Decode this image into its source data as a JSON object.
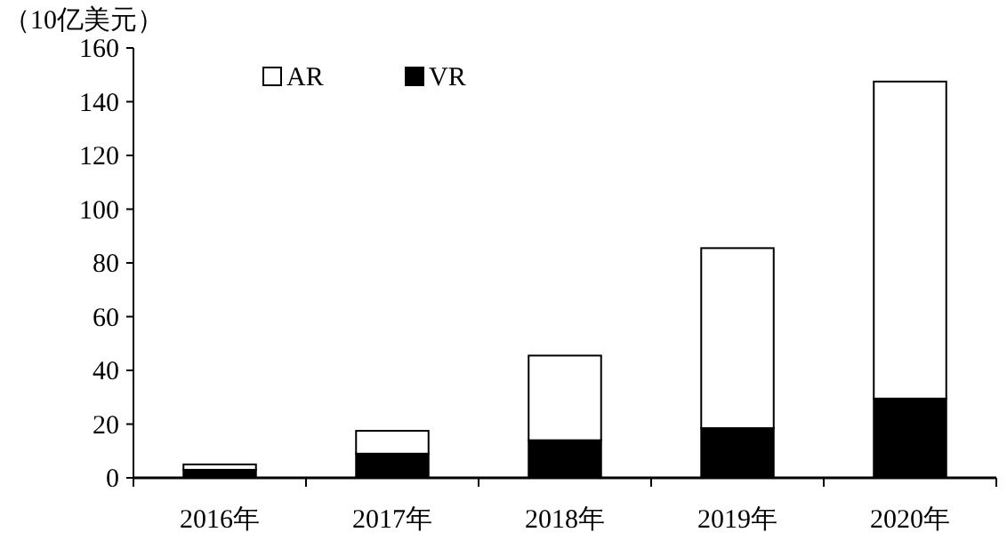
{
  "chart_data": {
    "type": "bar",
    "ylabel": "（10亿美元）",
    "categories": [
      "2016年",
      "2017年",
      "2018年",
      "2019年",
      "2020年"
    ],
    "stacked": true,
    "series": [
      {
        "name": "VR",
        "color": "#000000",
        "values": [
          3,
          9,
          14,
          18.5,
          29.5
        ]
      },
      {
        "name": "AR",
        "color": "#ffffff",
        "values": [
          2,
          8.5,
          31.5,
          67,
          118
        ]
      }
    ],
    "ylim": [
      0,
      160
    ],
    "yticks": [
      0,
      20,
      40,
      60,
      80,
      100,
      120,
      140,
      160
    ],
    "legend": "top",
    "grid": false
  }
}
